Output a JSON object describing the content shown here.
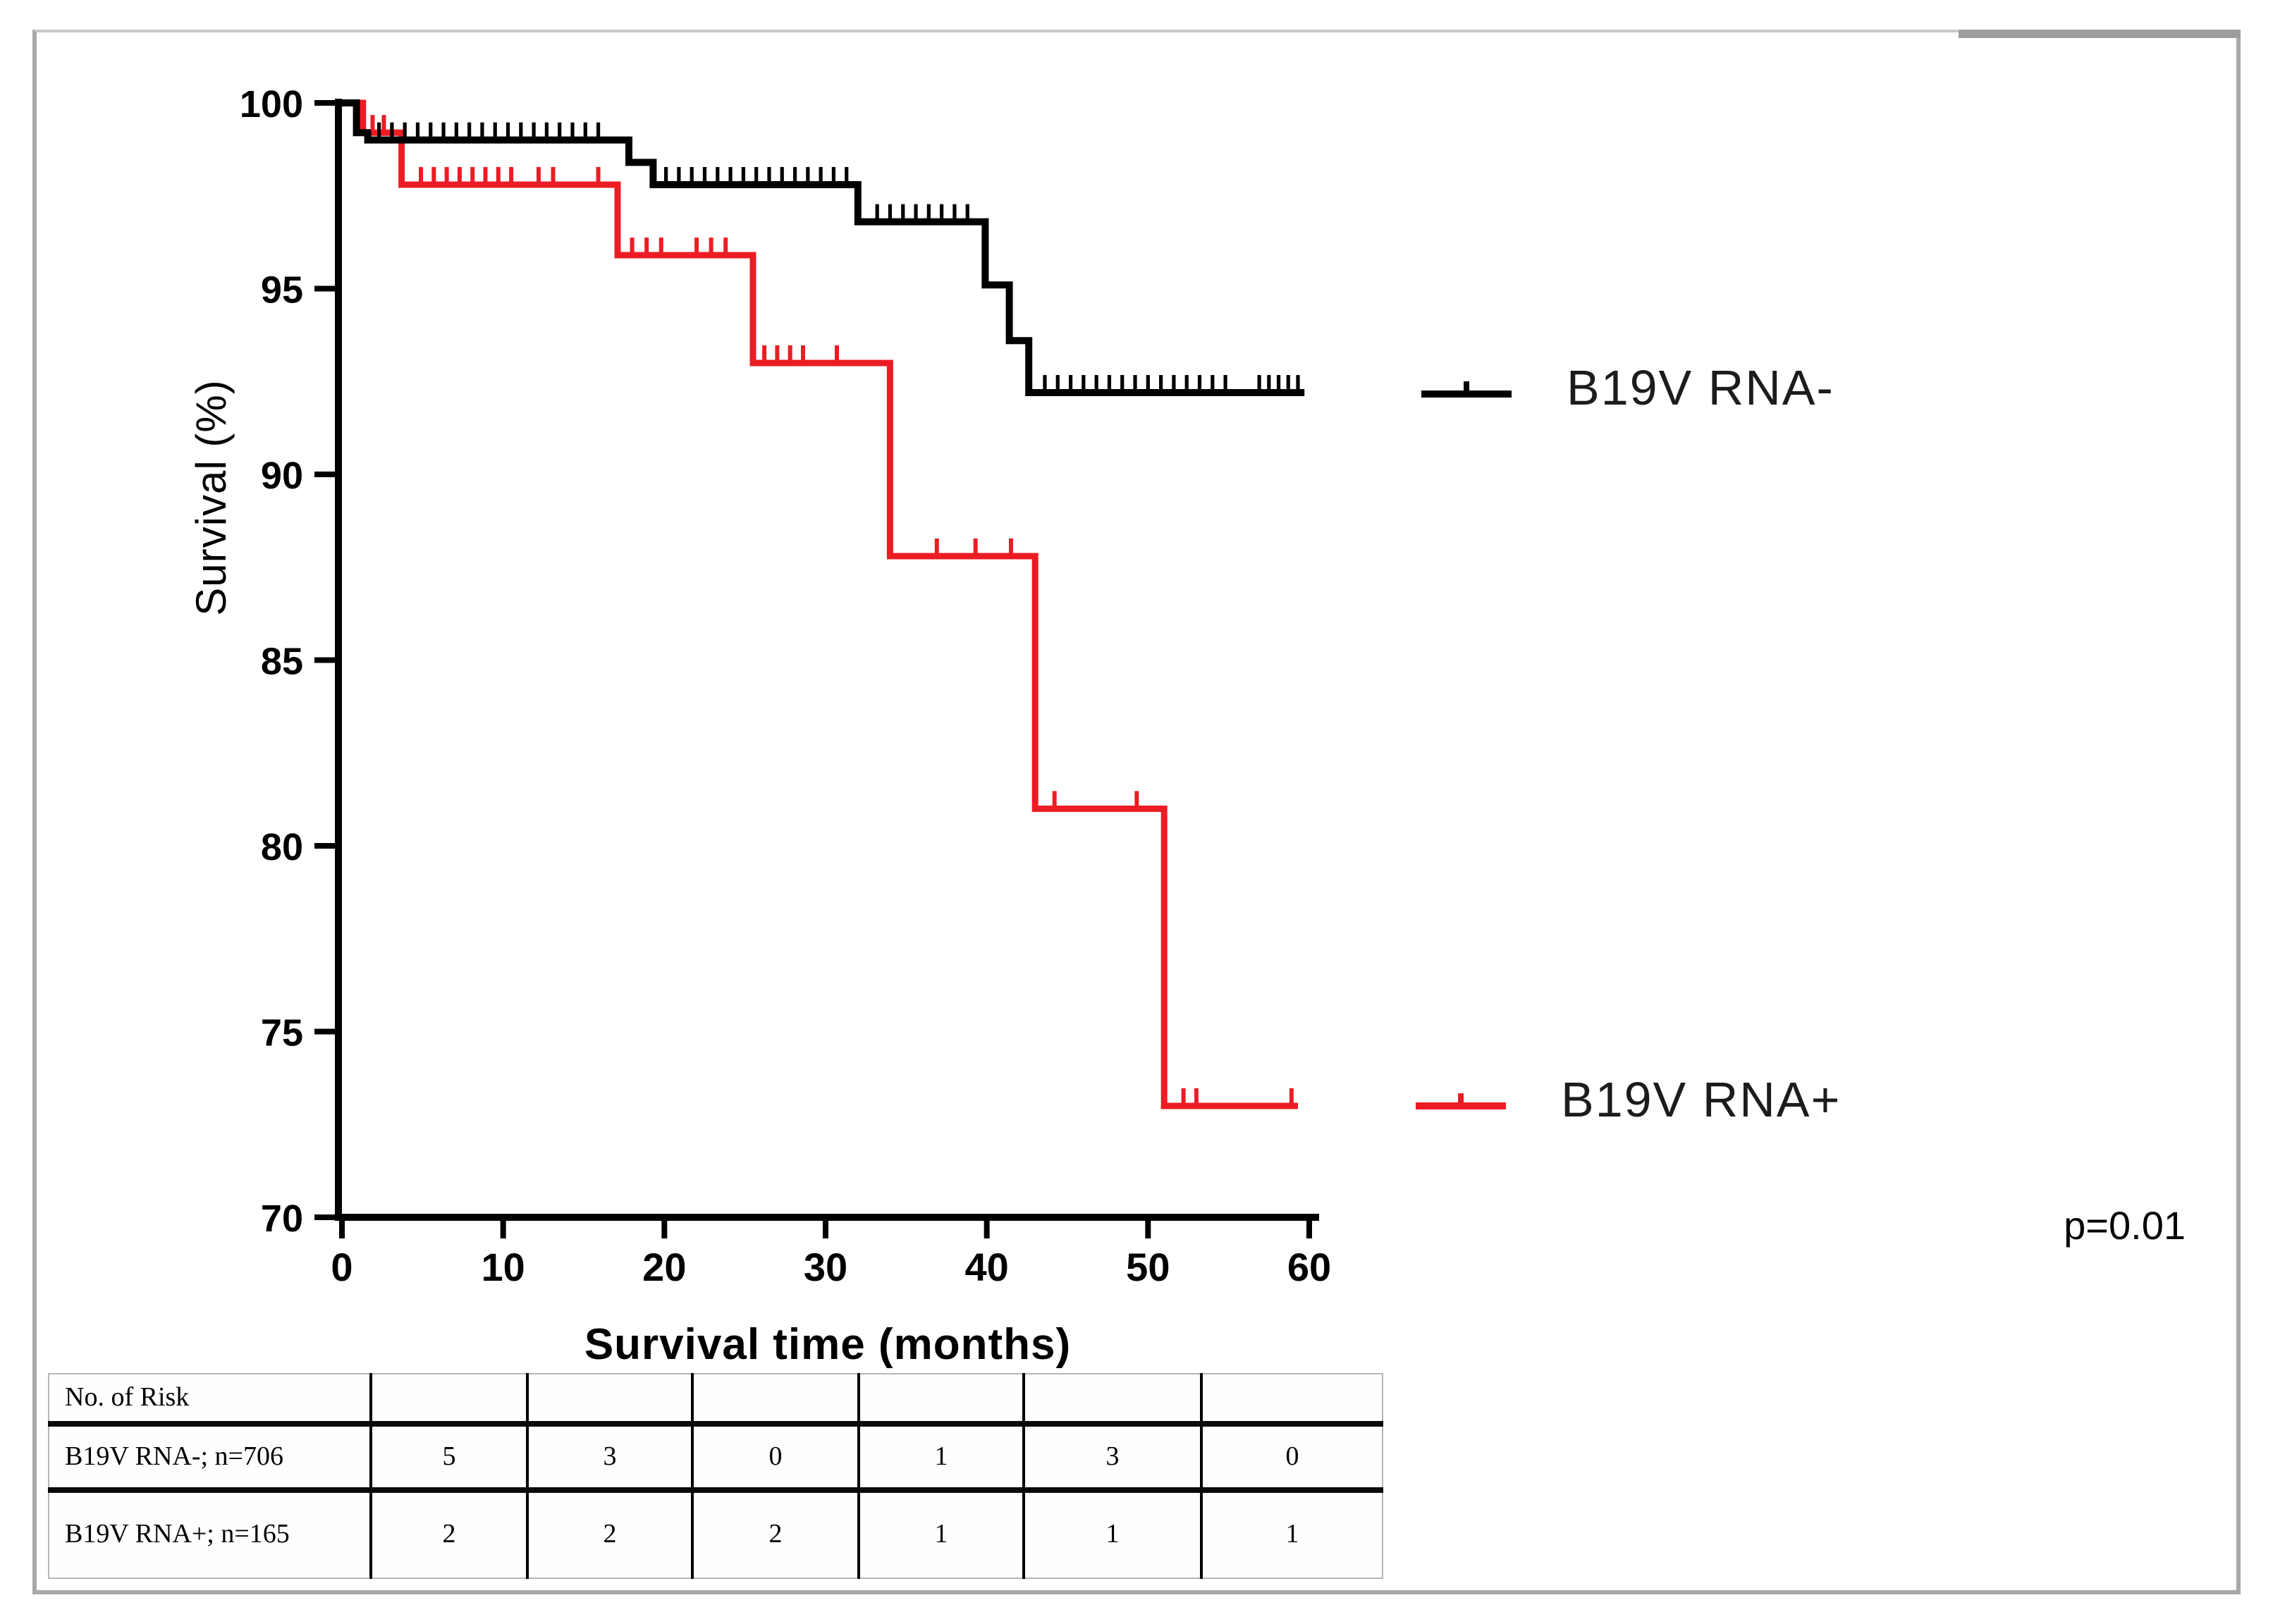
{
  "page": {
    "background": "#ffffff",
    "frame_border_color": "#a8a8a8"
  },
  "chart_data": {
    "type": "line",
    "subtype": "kaplan-meier-step",
    "title": "",
    "xlabel": "Survival time (months)",
    "ylabel": "Survival (%)",
    "xlim": [
      0,
      60
    ],
    "ylim": [
      70,
      100
    ],
    "x_ticks": [
      0,
      10,
      20,
      30,
      40,
      50,
      60
    ],
    "y_ticks": [
      100,
      95,
      90,
      85,
      80,
      75,
      70
    ],
    "grid": false,
    "legend_position": "right",
    "series": [
      {
        "name": "B19V RNA-",
        "color": "#000000",
        "steps": [
          [
            0,
            100
          ],
          [
            0.9,
            99.2
          ],
          [
            1.6,
            99.0
          ],
          [
            17.8,
            98.4
          ],
          [
            19.3,
            97.8
          ],
          [
            32,
            96.8
          ],
          [
            39.9,
            95.1
          ],
          [
            41.4,
            93.6
          ],
          [
            42.6,
            92.2
          ]
        ],
        "end": 59.7,
        "censor_times": [
          2.3,
          3.1,
          3.9,
          4.7,
          5.5,
          6.3,
          7.1,
          7.9,
          8.7,
          9.5,
          10.3,
          11.1,
          11.9,
          12.7,
          13.5,
          14.3,
          15.1,
          15.9,
          20.1,
          20.9,
          21.7,
          22.5,
          23.3,
          24.1,
          24.9,
          25.7,
          26.5,
          27.3,
          28.1,
          28.9,
          29.7,
          30.5,
          31.3,
          33.2,
          34,
          34.8,
          35.6,
          36.4,
          37.2,
          38,
          38.8,
          43.6,
          44.4,
          45.2,
          46,
          46.8,
          47.6,
          48.4,
          49.2,
          50,
          50.8,
          51.6,
          52.4,
          53.2,
          54,
          54.8,
          56.9,
          57.5,
          58.1,
          58.7,
          59.3
        ]
      },
      {
        "name": "B19V RNA+",
        "color": "#ec1c24",
        "steps": [
          [
            0,
            100
          ],
          [
            1.3,
            99.2
          ],
          [
            3.7,
            97.8
          ],
          [
            17.1,
            95.9
          ],
          [
            25.5,
            93.0
          ],
          [
            34,
            87.8
          ],
          [
            43,
            81.0
          ],
          [
            51,
            73.0
          ]
        ],
        "end": 59.3,
        "censor_times": [
          1.9,
          2.6,
          4.9,
          5.7,
          6.5,
          7.3,
          8.1,
          8.9,
          9.7,
          10.5,
          12.2,
          13.1,
          15.9,
          18,
          18.9,
          19.8,
          22,
          22.9,
          23.8,
          26.2,
          27,
          27.8,
          28.6,
          30.7,
          36.9,
          39.3,
          41.5,
          44.2,
          49.3,
          52.2,
          53,
          58.9
        ]
      }
    ]
  },
  "legend": {
    "entries": [
      {
        "label": "B19V RNA-",
        "color": "#000000"
      },
      {
        "label": "B19V RNA+",
        "color": "#ec1c24"
      }
    ]
  },
  "annotation": {
    "p_value": "p=0.01"
  },
  "risk_table": {
    "header": "No. of Risk",
    "rows": [
      {
        "label": "B19V RNA-; n=706",
        "values": [
          "5",
          "3",
          "0",
          "1",
          "3",
          "0"
        ]
      },
      {
        "label": "B19V RNA+; n=165",
        "values": [
          "2",
          "2",
          "2",
          "1",
          "1",
          "1"
        ]
      }
    ]
  }
}
